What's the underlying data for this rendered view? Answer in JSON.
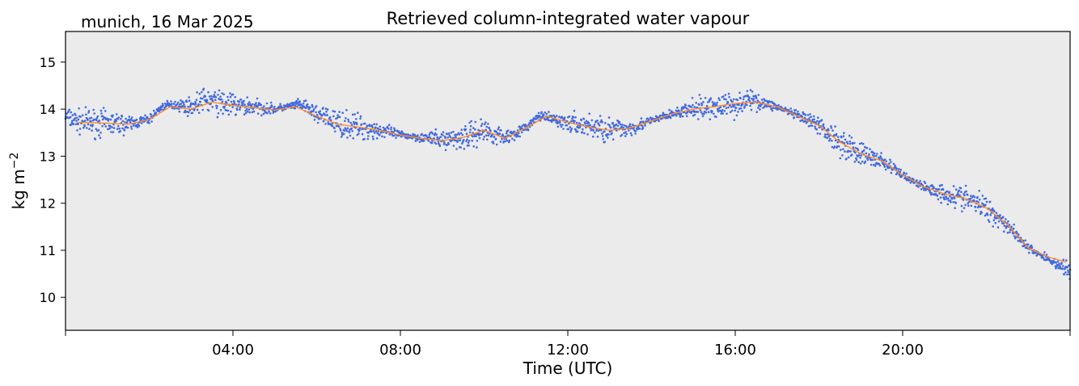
{
  "chart_data": {
    "type": "scatter",
    "title": "Retrieved column-integrated water vapour",
    "location_date": "munich, 16 Mar 2025",
    "xlabel": "Time (UTC)",
    "ylabel": "kg m",
    "ylabel_superscript": "−2",
    "xlim_hours": [
      0,
      24
    ],
    "ylim": [
      9.3,
      15.65
    ],
    "xtick_labels": [
      {
        "h": 4,
        "label": "04:00"
      },
      {
        "h": 8,
        "label": "08:00"
      },
      {
        "h": 12,
        "label": "12:00"
      },
      {
        "h": 16,
        "label": "16:00"
      },
      {
        "h": 20,
        "label": "20:00"
      }
    ],
    "minor_xticks_hours": [
      0,
      24
    ],
    "yticks": [
      10,
      11,
      12,
      13,
      14,
      15
    ],
    "plot_background": "#ebebeb",
    "series": [
      {
        "style": "scatter",
        "color": "#4169e1",
        "x": [
          0,
          0.25,
          0.5,
          1,
          1.5,
          2,
          2.3,
          2.6,
          3,
          3.3,
          3.6,
          4,
          4.5,
          5,
          5.3,
          5.6,
          6,
          6.5,
          7,
          7.5,
          8,
          8.5,
          9,
          9.5,
          10,
          10.5,
          11,
          11.3,
          11.6,
          12,
          12.5,
          13,
          13.5,
          14,
          14.5,
          15,
          15.5,
          16,
          16.3,
          16.6,
          17,
          17.5,
          18,
          18.5,
          19,
          19.5,
          20,
          20.5,
          21,
          21.5,
          22,
          22.5,
          23,
          23.5,
          24
        ],
        "y": [
          13.85,
          13.75,
          13.72,
          13.7,
          13.68,
          13.78,
          14.05,
          14.1,
          14.05,
          14.2,
          14.15,
          14.08,
          14.05,
          14.0,
          14.05,
          14.1,
          13.9,
          13.7,
          13.62,
          13.55,
          13.45,
          13.4,
          13.35,
          13.4,
          13.55,
          13.4,
          13.6,
          13.85,
          13.8,
          13.7,
          13.65,
          13.55,
          13.6,
          13.75,
          13.9,
          14.0,
          14.05,
          14.1,
          14.2,
          14.15,
          14.05,
          13.85,
          13.65,
          13.3,
          13.05,
          12.9,
          12.6,
          12.35,
          12.2,
          12.1,
          11.9,
          11.55,
          11.05,
          10.8,
          10.55
        ]
      },
      {
        "style": "line",
        "color": "#ff8c28",
        "x": [
          0.3,
          1,
          1.5,
          2,
          2.5,
          3,
          3.5,
          4,
          5,
          5.5,
          6,
          6.5,
          7,
          7.5,
          8,
          8.5,
          9,
          9.5,
          10,
          10.5,
          11,
          11.5,
          12,
          12.5,
          13,
          13.5,
          14,
          14.5,
          15,
          15.5,
          16,
          16.5,
          17,
          17.5,
          18,
          18.5,
          19,
          19.5,
          20,
          20.5,
          21,
          21.5,
          22,
          22.5,
          23,
          23.5,
          23.9
        ],
        "y": [
          13.72,
          13.7,
          13.68,
          13.78,
          14.05,
          14.0,
          14.15,
          14.08,
          13.98,
          14.05,
          13.85,
          13.68,
          13.62,
          13.55,
          13.45,
          13.38,
          13.33,
          13.4,
          13.55,
          13.38,
          13.6,
          13.85,
          13.72,
          13.62,
          13.55,
          13.6,
          13.75,
          13.9,
          14.0,
          14.05,
          14.12,
          14.15,
          14.05,
          13.85,
          13.65,
          13.3,
          13.05,
          12.9,
          12.6,
          12.35,
          12.2,
          12.1,
          11.9,
          11.55,
          11.05,
          10.85,
          10.75
        ]
      }
    ]
  }
}
